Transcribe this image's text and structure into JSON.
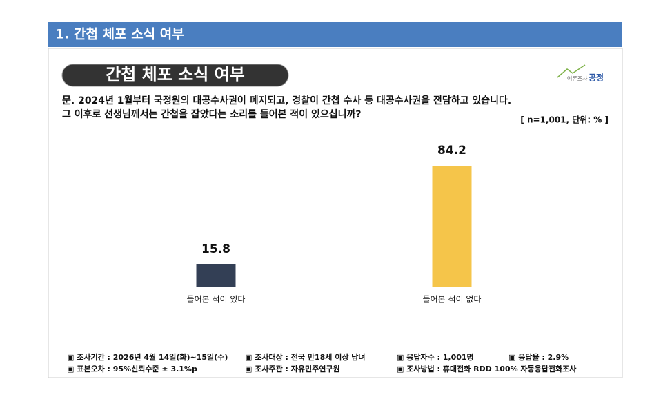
{
  "section": "1. 간첩 체포 소식 여부",
  "logo": [
    "여론조사",
    "공정"
  ],
  "chart_data": {
    "type": "bar",
    "title": "간첩 체포 소식 여부",
    "question": [
      "문. 2024년 1월부터 국정원의 대공수사권이 폐지되고, 경찰이 간첩 수사 등 대공수사권을 전담하고 있습니다.",
      "그 이후로 선생님께서는 간첩을 잡았다는 소리를 들어본 적이 있으십니까?"
    ],
    "note": "[ n=1,001, 단위: % ]",
    "categories": [
      "들어본 적이 있다",
      "들어본 적이 없다"
    ],
    "values": [
      15.8,
      84.2
    ],
    "colors": [
      "#333f55",
      "#f5c54a"
    ]
  },
  "footer": [
    [
      "▣ 조사기간 : 2026년 4월 14일(화)~15일(수)",
      "▣ 조사대상 : 전국 만18세 이상 남녀",
      "▣ 응답자수 : 1,001명",
      "▣ 응답율 : 2.9%"
    ],
    [
      "▣ 표본오차 : 95%신뢰수준 ± 3.1%p",
      "▣ 조사주관 : 자유민주연구원",
      "▣ 조사방법 : 휴대전화 RDD 100% 자동응답전화조사"
    ]
  ]
}
